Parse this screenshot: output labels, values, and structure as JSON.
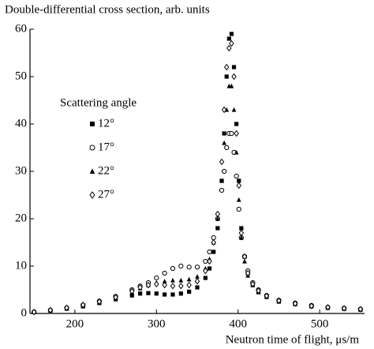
{
  "chart_data": {
    "type": "scatter",
    "title": "Double-differential cross section, arb. units",
    "x_label": "Neutron time of flight, μs/m",
    "legend_title": "Scattering angle",
    "x": [
      150,
      170,
      190,
      210,
      230,
      250,
      270,
      280,
      290,
      300,
      310,
      320,
      330,
      340,
      350,
      360,
      365,
      370,
      375,
      380,
      383,
      386,
      389,
      392,
      395,
      398,
      401,
      404,
      408,
      412,
      418,
      425,
      435,
      450,
      470,
      490,
      510,
      530,
      550
    ],
    "series": [
      {
        "name": "12°",
        "color": "#000000",
        "marker": "square",
        "values": [
          0.3,
          0.6,
          1.0,
          1.5,
          2.2,
          3.0,
          3.8,
          4.2,
          4.3,
          4.2,
          4.0,
          4.0,
          4.2,
          4.6,
          5.5,
          7.5,
          9.5,
          13,
          18,
          28,
          38,
          50,
          58,
          59,
          52,
          40,
          28,
          18,
          12,
          8.5,
          6,
          4.5,
          3.5,
          2.5,
          2,
          1.5,
          1.2,
          1,
          0.8
        ]
      },
      {
        "name": "17°",
        "color": "#000000",
        "marker": "circle",
        "values": [
          0.3,
          0.7,
          1.2,
          1.8,
          2.6,
          3.6,
          5,
          5.8,
          6.5,
          7.5,
          8.5,
          9.5,
          10,
          9.8,
          9.8,
          11,
          13,
          16,
          20,
          26,
          30,
          35,
          38,
          38,
          34,
          29,
          22,
          16,
          12,
          9,
          6.5,
          5,
          3.8,
          2.8,
          2.2,
          1.7,
          1.3,
          1.1,
          0.9
        ]
      },
      {
        "name": "22°",
        "color": "#000000",
        "marker": "triangle",
        "values": [
          0.3,
          0.6,
          1.1,
          1.6,
          2.4,
          3.3,
          4.5,
          5.3,
          6,
          6.5,
          6.8,
          7,
          7,
          7.2,
          7.8,
          9.5,
          11.5,
          15,
          20,
          28,
          36,
          43,
          48,
          48,
          43,
          34,
          24,
          16,
          11,
          8,
          6,
          4.5,
          3.5,
          2.6,
          2,
          1.6,
          1.2,
          1,
          0.8
        ]
      },
      {
        "name": "27°",
        "color": "#000000",
        "marker": "diamond",
        "values": [
          0.3,
          0.7,
          1.2,
          1.8,
          2.5,
          3.4,
          4.7,
          5.5,
          6,
          6.2,
          6,
          5.8,
          5.8,
          6,
          6.8,
          9,
          11,
          15,
          21,
          32,
          43,
          52,
          56,
          57,
          50,
          38,
          27,
          17,
          12,
          8.5,
          6.2,
          4.8,
          3.7,
          2.7,
          2.1,
          1.6,
          1.3,
          1.1,
          0.9
        ]
      }
    ],
    "xlim": [
      145,
      555
    ],
    "xticks": [
      200,
      300,
      400,
      500
    ],
    "ylim": [
      0,
      60
    ],
    "yticks": [
      0,
      10,
      20,
      30,
      40,
      50,
      60
    ]
  }
}
